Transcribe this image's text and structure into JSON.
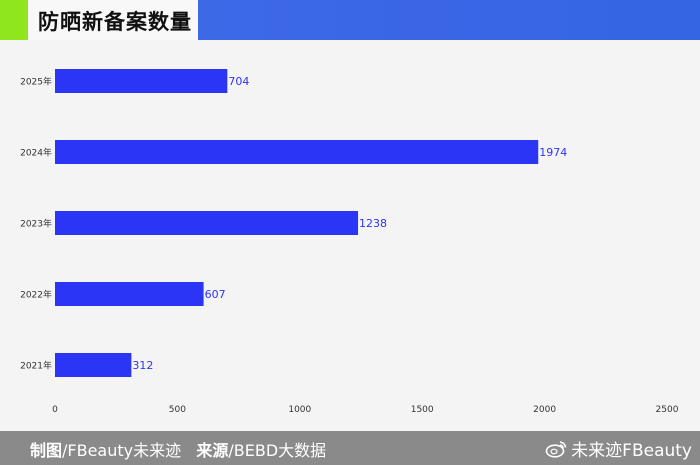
{
  "header": {
    "title": "防晒新备案数量"
  },
  "footer": {
    "made_by_label": "制图",
    "made_by_value": "/FBeauty未来迹",
    "source_label": "来源",
    "source_value": "/BEBD大数据",
    "watermark": "未来迹FBeauty",
    "watermark_icon": "weibo-icon"
  },
  "colors": {
    "bar": "#2b35f5",
    "value_label": "#2b35f5",
    "tick": "#333333",
    "header": "#3a66e6",
    "accent": "#8fe61c",
    "footer": "#8a8a8a"
  },
  "chart_data": {
    "type": "bar",
    "orientation": "horizontal",
    "title": "防晒新备案数量",
    "categories": [
      "2025年",
      "2024年",
      "2023年",
      "2022年",
      "2021年"
    ],
    "values": [
      704,
      1974,
      1238,
      607,
      312
    ],
    "xlim": [
      0,
      2500
    ],
    "xticks": [
      0,
      500,
      1000,
      1500,
      2000,
      2500
    ],
    "grid": false,
    "legend": "none"
  }
}
